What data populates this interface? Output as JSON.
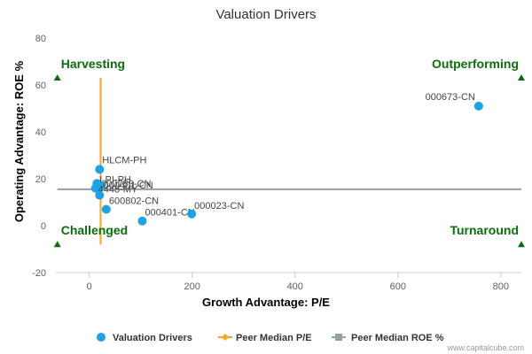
{
  "chart_data": {
    "type": "scatter",
    "title": "Valuation Drivers",
    "xlabel": "Growth Advantage: P/E",
    "ylabel": "Operating Advantage: ROE %",
    "xlim": [
      -65,
      840
    ],
    "ylim": [
      -20,
      80
    ],
    "x_ticks": [
      0,
      200,
      400,
      600,
      800
    ],
    "y_ticks": [
      -20,
      0,
      20,
      40,
      60,
      80
    ],
    "grid": false,
    "legend_position": "bottom",
    "colors": {
      "points": "#1aa3e6",
      "peer_pe": "#f5a623",
      "peer_roe": "#95a0a9",
      "quadrant": "#0b6e0b"
    },
    "series": [
      {
        "name": "Valuation Drivers",
        "points": [
          {
            "label": "000673-CN",
            "x": 757,
            "y": 51
          },
          {
            "label": "HLCM-PH",
            "x": 20,
            "y": 24
          },
          {
            "label": "LPI-PH",
            "x": 15,
            "y": 18
          },
          {
            "label": "000789-CN",
            "x": 18,
            "y": 17
          },
          {
            "label": "000401-CN",
            "x": 22,
            "y": 17
          },
          {
            "label": "4448-MY",
            "x": 12,
            "y": 16
          },
          {
            "label": "",
            "x": 20,
            "y": 13
          },
          {
            "label": "600802-CN",
            "x": 33,
            "y": 7
          },
          {
            "label": "000401-CN",
            "x": 103,
            "y": 2
          },
          {
            "label": "000023-CN",
            "x": 199,
            "y": 5
          }
        ]
      },
      {
        "name": "Peer Median P/E",
        "x": 22,
        "y_range": [
          -8,
          63
        ]
      },
      {
        "name": "Peer Median ROE %",
        "y": 15.5,
        "x_range": [
          -62,
          840
        ]
      }
    ],
    "quadrants": [
      {
        "label": "Harvesting",
        "x": -62,
        "y": 63,
        "anchor": "start"
      },
      {
        "label": "Outperforming",
        "x": 840,
        "y": 63,
        "anchor": "end"
      },
      {
        "label": "Challenged",
        "x": -62,
        "y": -8,
        "anchor": "start"
      },
      {
        "label": "Turnaround",
        "x": 840,
        "y": -8,
        "anchor": "end"
      }
    ]
  },
  "credit": "www.capitalcube.com"
}
